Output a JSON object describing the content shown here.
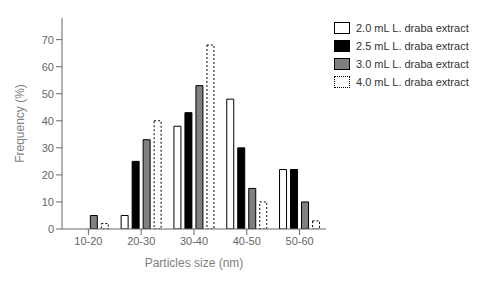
{
  "chart_data": {
    "type": "bar",
    "xlabel": "Particles size (nm)",
    "ylabel": "Frequency (%)",
    "categories": [
      "10-20",
      "20-30",
      "30-40",
      "40-50",
      "50-60"
    ],
    "series": [
      {
        "name": "2.0 mL L. draba extract",
        "color": "white",
        "values": [
          0,
          5,
          38,
          48,
          22
        ]
      },
      {
        "name": "2.5 mL L. draba extract",
        "color": "black",
        "values": [
          0,
          25,
          43,
          30,
          22
        ]
      },
      {
        "name": "3.0 mL L. draba extract",
        "color": "#808080",
        "values": [
          5,
          33,
          53,
          15,
          10
        ]
      },
      {
        "name": "4.0 mL L. draba extract",
        "color": "white",
        "line_style": "dotted",
        "values": [
          2,
          40,
          68,
          10,
          3
        ]
      }
    ],
    "ylim": [
      0,
      78
    ],
    "yticks": [
      0,
      10,
      20,
      30,
      40,
      50,
      60,
      70
    ],
    "grid": false,
    "legend": "upper right"
  }
}
